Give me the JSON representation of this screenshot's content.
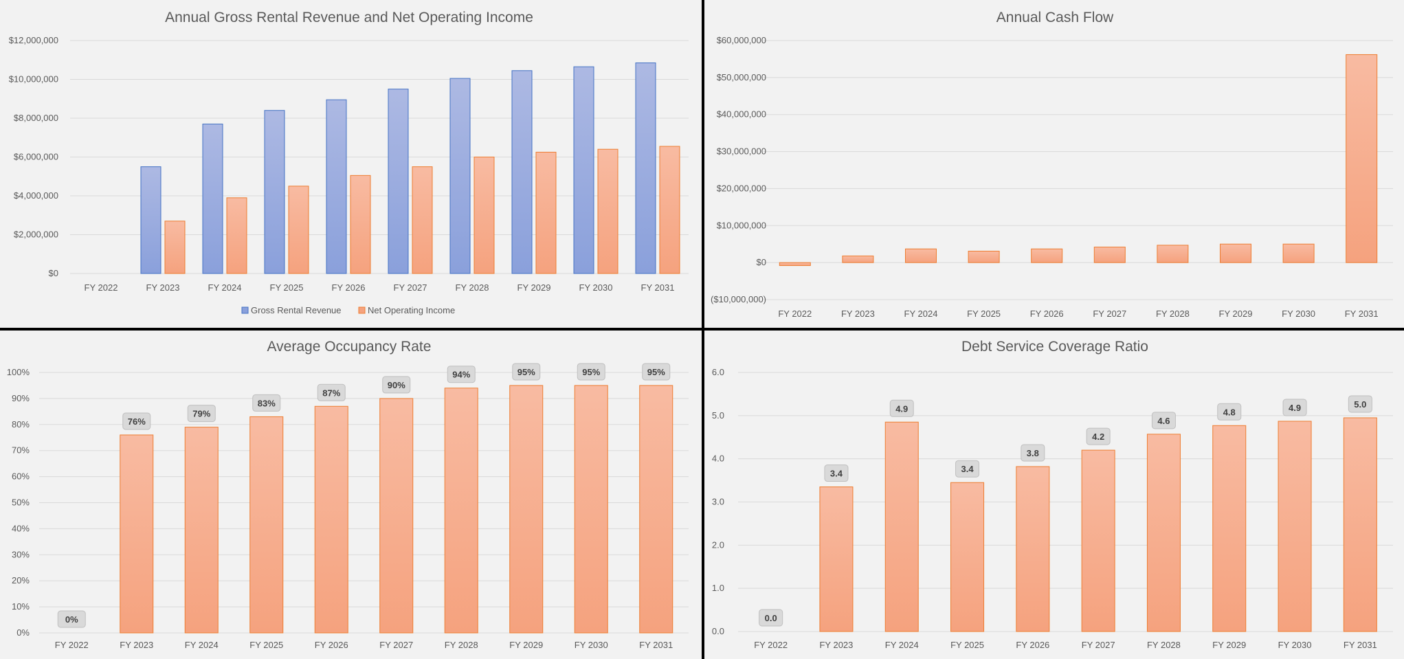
{
  "colors": {
    "panel_bg": "#f2f2f2",
    "border": "#000000",
    "gridline": "#d9d9d9",
    "gross_fill_top": "#adb9e3",
    "gross_fill_bottom": "#8aa0db",
    "gross_stroke": "#4472c4",
    "orange_fill_top": "#f8bba2",
    "orange_fill_bottom": "#f5a27e",
    "orange_stroke": "#ed7d31",
    "label_box_fill": "#d9d9d9",
    "label_box_stroke": "#bfbfbf"
  },
  "chart_data": [
    {
      "id": "revenue",
      "type": "bar",
      "title": "Annual Gross Rental Revenue and Net Operating Income",
      "categories": [
        "FY 2022",
        "FY 2023",
        "FY 2024",
        "FY 2025",
        "FY 2026",
        "FY 2027",
        "FY 2028",
        "FY 2029",
        "FY 2030",
        "FY 2031"
      ],
      "series": [
        {
          "name": "Gross Rental Revenue",
          "values": [
            0,
            5500000,
            7700000,
            8400000,
            8950000,
            9500000,
            10050000,
            10450000,
            10650000,
            10850000
          ]
        },
        {
          "name": "Net Operating Income",
          "values": [
            0,
            2700000,
            3900000,
            4500000,
            5050000,
            5500000,
            6000000,
            6250000,
            6400000,
            6550000
          ]
        }
      ],
      "ylim": [
        0,
        12000000
      ],
      "yticks": [
        0,
        2000000,
        4000000,
        6000000,
        8000000,
        10000000,
        12000000
      ],
      "ytick_labels": [
        "$0",
        "$2,000,000",
        "$4,000,000",
        "$6,000,000",
        "$8,000,000",
        "$10,000,000",
        "$12,000,000"
      ],
      "grid": true,
      "legend": "bottom"
    },
    {
      "id": "cashflow",
      "type": "bar",
      "title": "Annual Cash Flow",
      "categories": [
        "FY 2022",
        "FY 2023",
        "FY 2024",
        "FY 2025",
        "FY 2026",
        "FY 2027",
        "FY 2028",
        "FY 2029",
        "FY 2030",
        "FY 2031"
      ],
      "series": [
        {
          "values": [
            -800000,
            1800000,
            3700000,
            3100000,
            3700000,
            4200000,
            4700000,
            5000000,
            5000000,
            56200000
          ]
        }
      ],
      "ylim": [
        -10000000,
        60000000
      ],
      "yticks": [
        -10000000,
        0,
        10000000,
        20000000,
        30000000,
        40000000,
        50000000,
        60000000
      ],
      "ytick_labels": [
        "($10,000,000)",
        "$0",
        "$10,000,000",
        "$20,000,000",
        "$30,000,000",
        "$40,000,000",
        "$50,000,000",
        "$60,000,000"
      ],
      "grid": true
    },
    {
      "id": "occupancy",
      "type": "bar",
      "title": "Average Occupancy Rate",
      "categories": [
        "FY 2022",
        "FY 2023",
        "FY 2024",
        "FY 2025",
        "FY 2026",
        "FY 2027",
        "FY 2028",
        "FY 2029",
        "FY 2030",
        "FY 2031"
      ],
      "series": [
        {
          "values": [
            0,
            76,
            79,
            83,
            87,
            90,
            94,
            95,
            95,
            95
          ]
        }
      ],
      "data_labels": [
        "0%",
        "76%",
        "79%",
        "83%",
        "87%",
        "90%",
        "94%",
        "95%",
        "95%",
        "95%"
      ],
      "ylim": [
        0,
        100
      ],
      "yticks": [
        0,
        10,
        20,
        30,
        40,
        50,
        60,
        70,
        80,
        90,
        100
      ],
      "ytick_labels": [
        "0%",
        "10%",
        "20%",
        "30%",
        "40%",
        "50%",
        "60%",
        "70%",
        "80%",
        "90%",
        "100%"
      ],
      "grid": true
    },
    {
      "id": "dscr",
      "type": "bar",
      "title": "Debt Service Coverage Ratio",
      "categories": [
        "FY 2022",
        "FY 2023",
        "FY 2024",
        "FY 2025",
        "FY 2026",
        "FY 2027",
        "FY 2028",
        "FY 2029",
        "FY 2030",
        "FY 2031"
      ],
      "series": [
        {
          "values": [
            0,
            3.35,
            4.85,
            3.45,
            3.82,
            4.2,
            4.57,
            4.77,
            4.87,
            4.95
          ]
        }
      ],
      "data_labels": [
        "0.0",
        "3.4",
        "4.9",
        "3.4",
        "3.8",
        "4.2",
        "4.6",
        "4.8",
        "4.9",
        "5.0"
      ],
      "ylim": [
        0,
        6
      ],
      "yticks": [
        0,
        1,
        2,
        3,
        4,
        5,
        6
      ],
      "ytick_labels": [
        "0.0",
        "1.0",
        "2.0",
        "3.0",
        "4.0",
        "5.0",
        "6.0"
      ],
      "grid": true
    }
  ]
}
